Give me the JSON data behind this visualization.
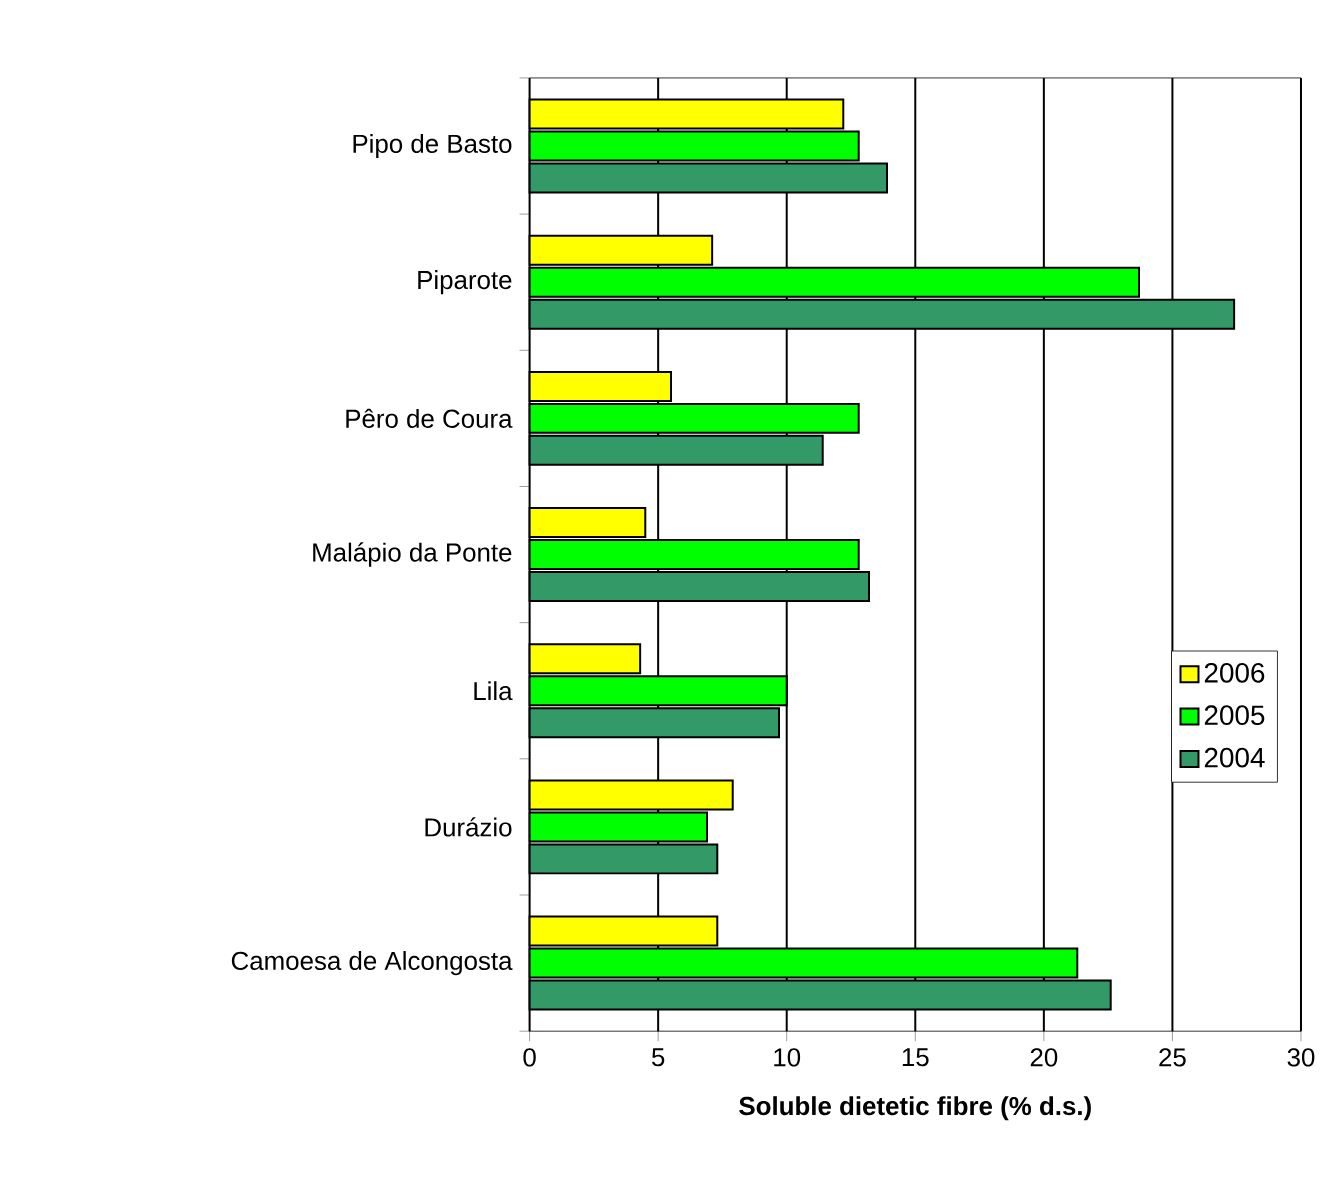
{
  "chart_data": {
    "type": "bar",
    "orientation": "horizontal",
    "xlabel": "**Soluble dietetic fibre (% d.s.)**",
    "categories": [
      "Pipo de Basto",
      "Piparote",
      "Pêro de Coura",
      "Malápio da Ponte",
      "Lila",
      "Durázio",
      "Camoesa de Alcongosta"
    ],
    "series": [
      {
        "name": "2006",
        "color": "#ffff00",
        "values": [
          12.2,
          7.1,
          5.5,
          4.5,
          4.3,
          7.9,
          7.3
        ]
      },
      {
        "name": "2005",
        "color": "#00ff00",
        "values": [
          12.8,
          23.7,
          12.8,
          12.8,
          10.0,
          6.9,
          21.3
        ]
      },
      {
        "name": "2004",
        "color": "#339966",
        "values": [
          13.9,
          27.4,
          11.4,
          13.2,
          9.7,
          7.3,
          22.6
        ]
      }
    ],
    "xlim": [
      0,
      30
    ],
    "xticks": [
      0,
      5,
      10,
      15,
      20,
      25,
      30
    ],
    "grid": "x",
    "legend": "right"
  }
}
